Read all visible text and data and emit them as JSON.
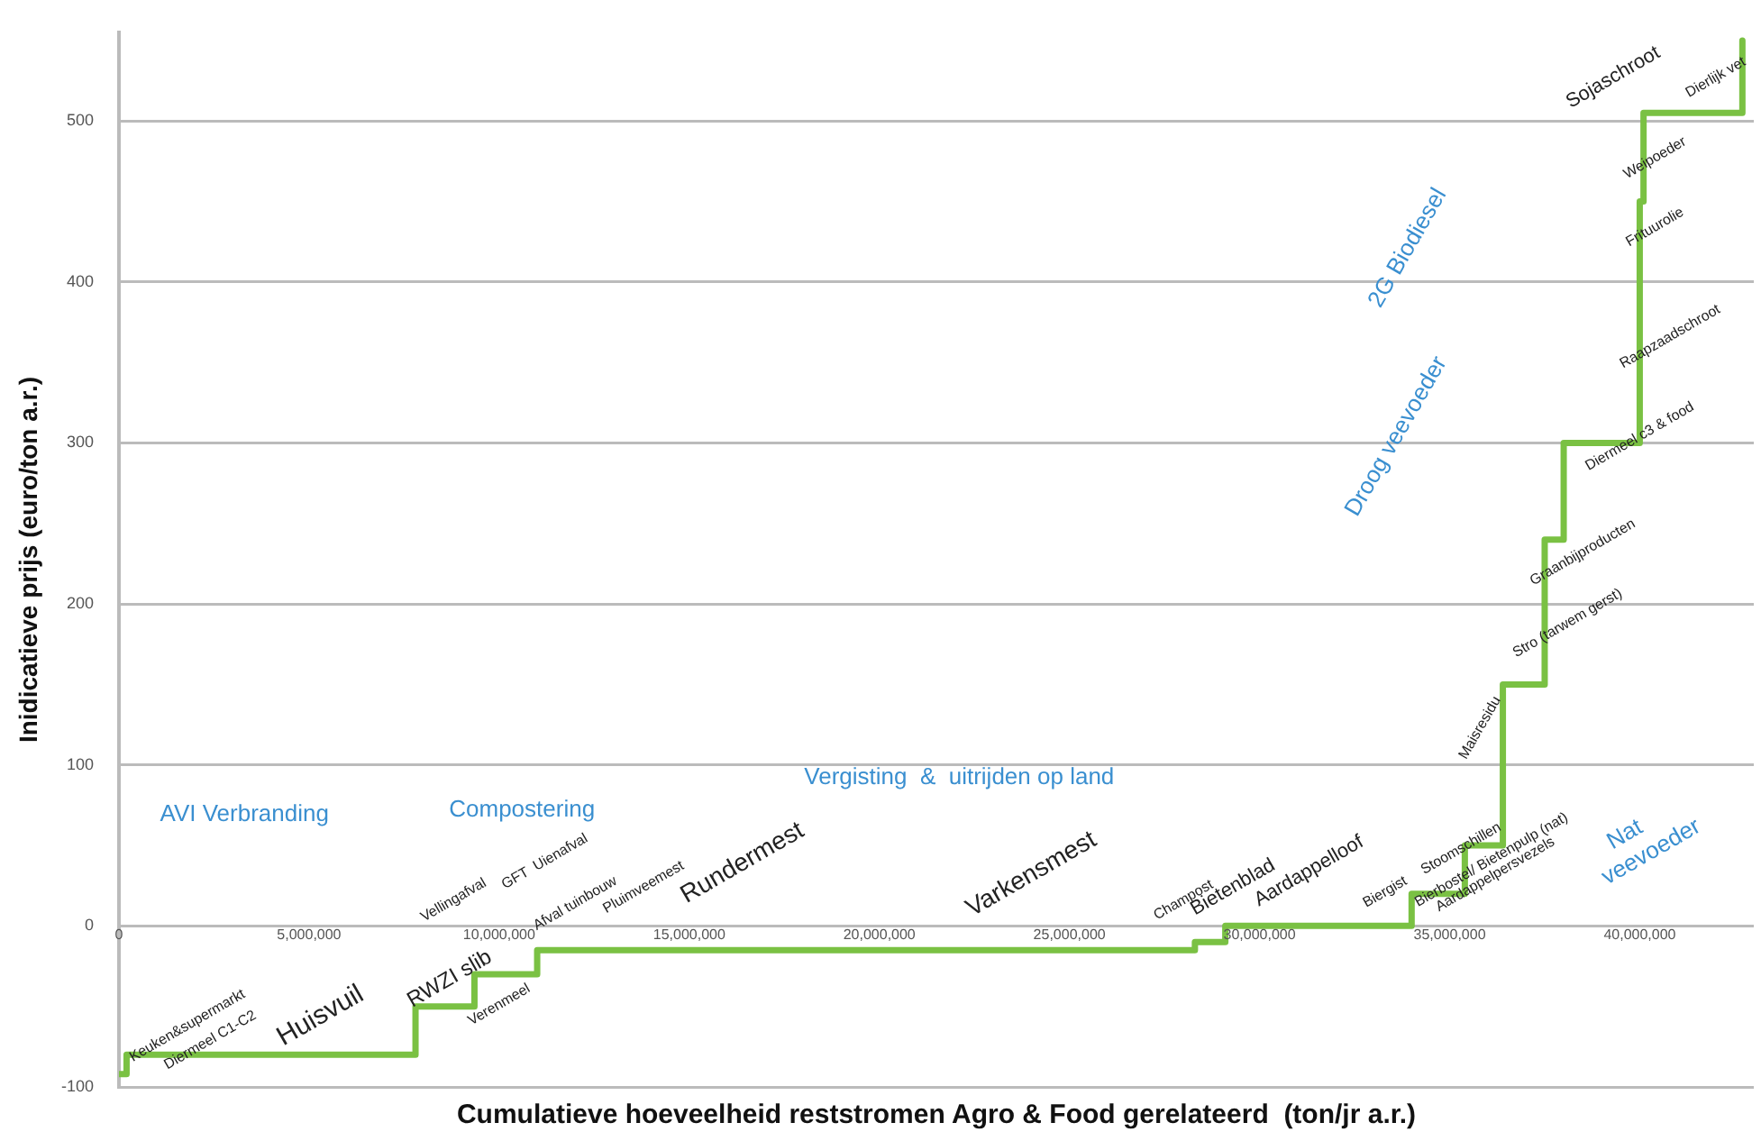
{
  "chart_data": {
    "type": "step",
    "xlabel": "Cumulatieve hoeveelheid reststromen Agro & Food gerelateerd  (ton/jr a.r.)",
    "ylabel": "Inidicatieve prijs (euro/ton a.r.)",
    "x": [
      0,
      200000,
      7800000,
      9350000,
      11000000,
      28300000,
      29100000,
      34000000,
      35400000,
      36400000,
      37500000,
      38000000,
      40000000,
      40100000,
      42700000
    ],
    "series": [
      {
        "color": "#7ac143",
        "values": [
          -92,
          -80,
          -50,
          -30,
          -15,
          -10,
          0,
          20,
          50,
          150,
          240,
          300,
          450,
          505,
          550
        ]
      }
    ],
    "xlim": [
      0,
      43000000
    ],
    "xticks": [
      0,
      {
        "value": 5000000,
        "label": "5,000,000"
      },
      {
        "value": 10000000,
        "label": "10,000,000"
      },
      {
        "value": 15000000,
        "label": "15,000,000"
      },
      {
        "value": 20000000,
        "label": "20,000,000"
      },
      {
        "value": 25000000,
        "label": "25,000,000"
      },
      {
        "value": 30000000,
        "label": "30,000,000"
      },
      {
        "value": 35000000,
        "label": "35,000,000"
      },
      {
        "value": 40000000,
        "label": "40,000,000"
      }
    ],
    "ylim": [
      -100,
      555
    ],
    "yticks": [
      -100,
      0,
      100,
      200,
      300,
      400,
      500
    ],
    "grid": "y",
    "legend": false,
    "marker": "none",
    "line_style": "solid",
    "annotations": [
      "Keuken&supermarkt",
      "Diermeel C1-C2",
      "Huisvuil",
      "RWZI slib",
      "Verenmeel",
      "Vellingafval",
      "GFT  Uienafval",
      "Afval tuinbouw",
      "Pluimveemest",
      "Rundermest",
      "Vergisting  &  uitrijden op land",
      "AVI Verbranding",
      "Compostering",
      "Varkensmest",
      "Champost",
      "Bietenblad",
      "Aardappelloof",
      "Biergist",
      "Stoomschillen",
      "Bierbostel/ Bietenpulp (nat)",
      "Aardappelpersvezels",
      "Nat\nveevoeder",
      "Maisresidu",
      "Stro (tarwem gerst)",
      "Graanbijproducten",
      "Diermeel c3 & food",
      "Raapzaadschroot",
      "Frituurolie",
      "Weipoeder",
      "Sojaschroot",
      "Dierlijk vet",
      "2G Biodiesel",
      "Droog veevoeder"
    ]
  }
}
